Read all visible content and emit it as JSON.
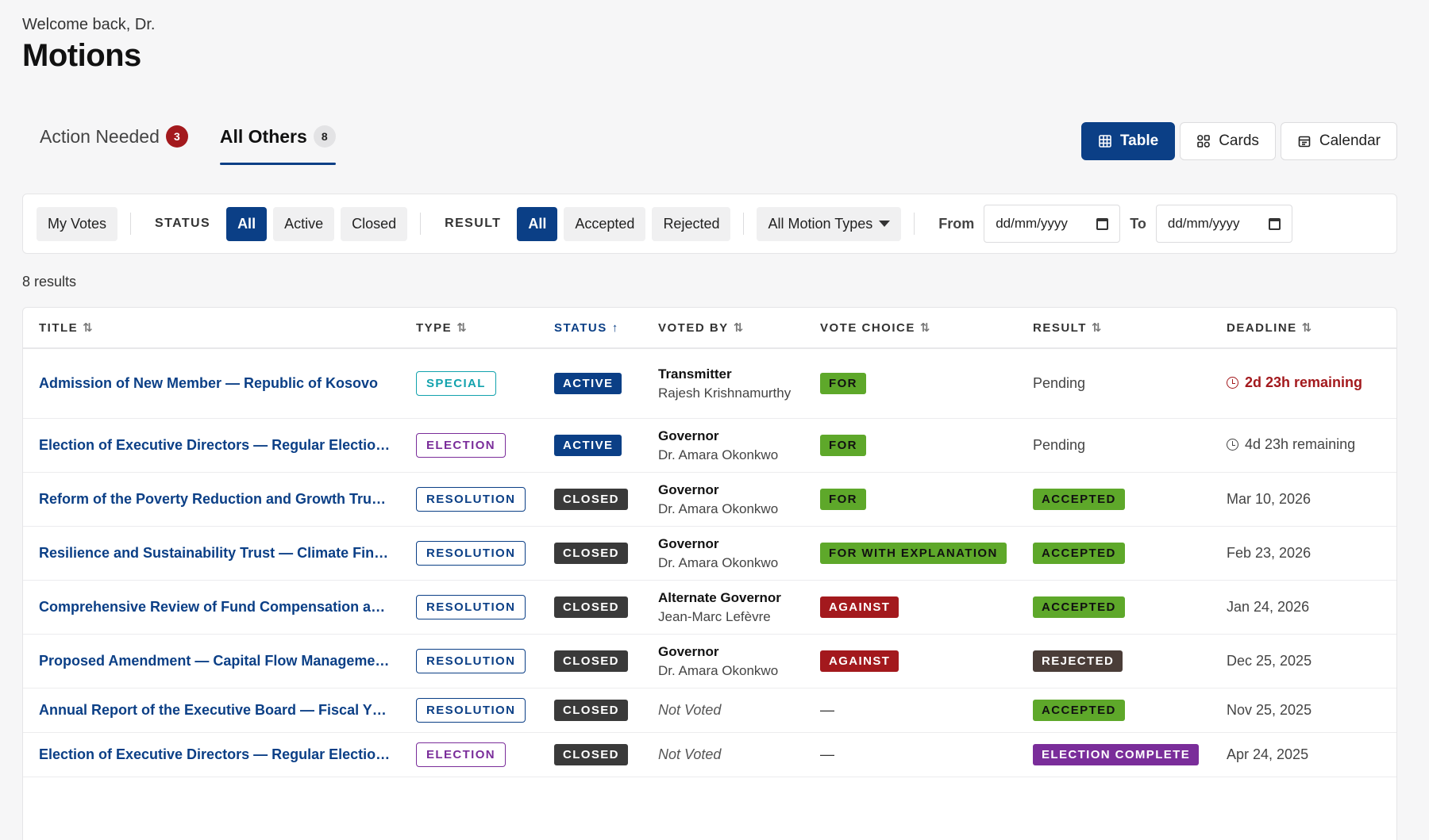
{
  "header": {
    "welcome": "Welcome back, Dr.",
    "title": "Motions"
  },
  "tabs": [
    {
      "label": "Action Needed",
      "count": "3",
      "active": false
    },
    {
      "label": "All Others",
      "count": "8",
      "active": true
    }
  ],
  "views": [
    {
      "label": "Table",
      "icon": "table-icon",
      "active": true
    },
    {
      "label": "Cards",
      "icon": "cards-icon",
      "active": false
    },
    {
      "label": "Calendar",
      "icon": "calendar-icon",
      "active": false
    }
  ],
  "filters": {
    "my_votes": "My Votes",
    "status_label": "STATUS",
    "status_options": [
      "All",
      "Active",
      "Closed"
    ],
    "status_selected": "All",
    "result_label": "RESULT",
    "result_options": [
      "All",
      "Accepted",
      "Rejected"
    ],
    "result_selected": "All",
    "motion_type": "All Motion Types",
    "from_label": "From",
    "from_placeholder": "dd/mm/yyyy",
    "to_label": "To",
    "to_placeholder": "dd/mm/yyyy"
  },
  "results_count": "8 results",
  "table": {
    "columns": [
      {
        "label": "TITLE",
        "sort": "⇅",
        "sorted": false
      },
      {
        "label": "TYPE",
        "sort": "⇅",
        "sorted": false
      },
      {
        "label": "STATUS",
        "sort": "↑",
        "sorted": true
      },
      {
        "label": "VOTED BY",
        "sort": "⇅",
        "sorted": false
      },
      {
        "label": "VOTE CHOICE",
        "sort": "⇅",
        "sorted": false
      },
      {
        "label": "RESULT",
        "sort": "⇅",
        "sorted": false
      },
      {
        "label": "DEADLINE",
        "sort": "⇅",
        "sorted": false
      }
    ],
    "rows": [
      {
        "title": "Admission of New Member — Republic of Kosovo",
        "type": "SPECIAL",
        "status": "ACTIVE",
        "voter_role": "Transmitter",
        "voter_name": "Rajesh Krishnamurthy",
        "vote": "FOR",
        "result": "Pending",
        "deadline": "2d 23h remaining",
        "deadline_kind": "urgent"
      },
      {
        "title": "Election of Executive Directors — Regular Electio…",
        "type": "ELECTION",
        "status": "ACTIVE",
        "voter_role": "Governor",
        "voter_name": "Dr. Amara Okonkwo",
        "vote": "FOR",
        "result": "Pending",
        "deadline": "4d 23h remaining",
        "deadline_kind": "remaining"
      },
      {
        "title": "Reform of the Poverty Reduction and Growth Tru…",
        "type": "RESOLUTION",
        "status": "CLOSED",
        "voter_role": "Governor",
        "voter_name": "Dr. Amara Okonkwo",
        "vote": "FOR",
        "result": "ACCEPTED",
        "deadline": "Mar 10, 2026",
        "deadline_kind": "date"
      },
      {
        "title": "Resilience and Sustainability Trust — Climate Fin…",
        "type": "RESOLUTION",
        "status": "CLOSED",
        "voter_role": "Governor",
        "voter_name": "Dr. Amara Okonkwo",
        "vote": "FOR WITH EXPLANATION",
        "result": "ACCEPTED",
        "deadline": "Feb 23, 2026",
        "deadline_kind": "date"
      },
      {
        "title": "Comprehensive Review of Fund Compensation a…",
        "type": "RESOLUTION",
        "status": "CLOSED",
        "voter_role": "Alternate Governor",
        "voter_name": "Jean-Marc Lefèvre",
        "vote": "AGAINST",
        "result": "ACCEPTED",
        "deadline": "Jan 24, 2026",
        "deadline_kind": "date"
      },
      {
        "title": "Proposed Amendment — Capital Flow Manageme…",
        "type": "RESOLUTION",
        "status": "CLOSED",
        "voter_role": "Governor",
        "voter_name": "Dr. Amara Okonkwo",
        "vote": "AGAINST",
        "result": "REJECTED",
        "deadline": "Dec 25, 2025",
        "deadline_kind": "date"
      },
      {
        "title": "Annual Report of the Executive Board — Fiscal Y…",
        "type": "RESOLUTION",
        "status": "CLOSED",
        "voter_role": "",
        "voter_name": "Not Voted",
        "vote": "—",
        "result": "ACCEPTED",
        "deadline": "Nov 25, 2025",
        "deadline_kind": "date"
      },
      {
        "title": "Election of Executive Directors — Regular Electio…",
        "type": "ELECTION",
        "status": "CLOSED",
        "voter_role": "",
        "voter_name": "Not Voted",
        "vote": "—",
        "result": "ELECTION COMPLETE",
        "deadline": "Apr 24, 2025",
        "deadline_kind": "date"
      }
    ]
  },
  "colors": {
    "primary": "#0b3f86",
    "danger": "#a3191d",
    "success": "#5ea82a",
    "closed": "#3a3a3a",
    "election": "#7a2d9a",
    "special": "#12a2ad"
  }
}
